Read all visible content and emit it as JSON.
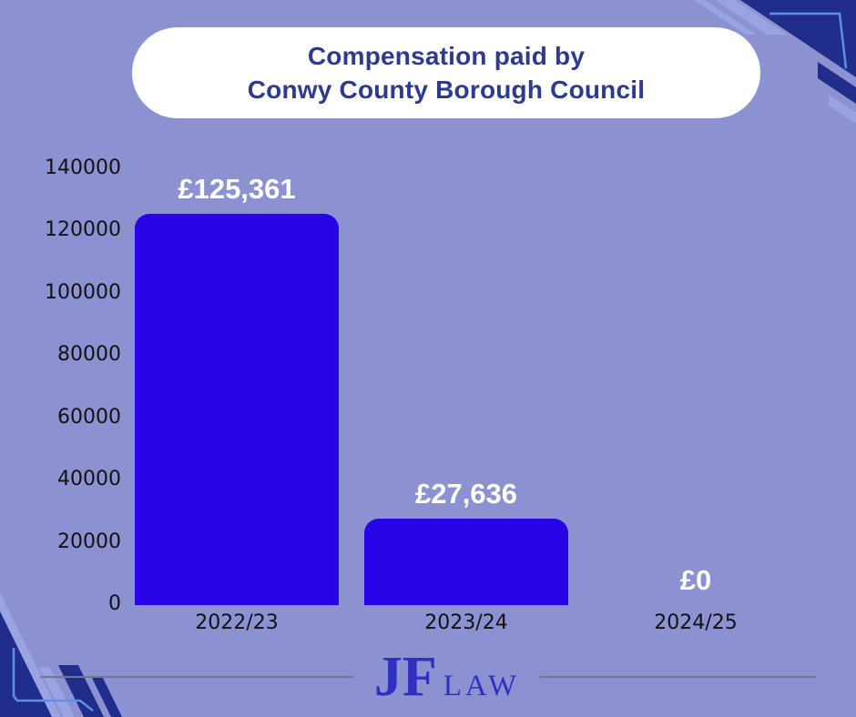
{
  "title": {
    "line1": "Compensation paid by",
    "line2": "Conwy County Borough Council"
  },
  "chart_data": {
    "type": "bar",
    "title": "Compensation paid by Conwy County Borough Council",
    "categories": [
      "2022/23",
      "2023/24",
      "2024/25"
    ],
    "values": [
      125361,
      27636,
      0
    ],
    "value_labels": [
      "£125,361",
      "£27,636",
      "£0"
    ],
    "yticks": [
      "140000",
      "120000",
      "100000",
      "80000",
      "60000",
      "40000",
      "20000",
      "0"
    ],
    "ylim": [
      0,
      140000
    ],
    "xlabel": "",
    "ylabel": "",
    "grid": false,
    "legend": "none",
    "bar_color": "#2805e6"
  },
  "footer": {
    "logo_main": "JF",
    "logo_sub": "LAW"
  },
  "colors": {
    "background": "#8c91d2",
    "bar": "#2805e6",
    "title_text": "#2c3a90",
    "value_label_text": "#ffffff",
    "axis_text": "#121212",
    "corner_navy": "#202d8a",
    "corner_light_stripe": "#9ba4e2",
    "corner_accent_line": "#5f8fe8",
    "logo_text": "#3130c0",
    "divider_line": "#70769a"
  }
}
